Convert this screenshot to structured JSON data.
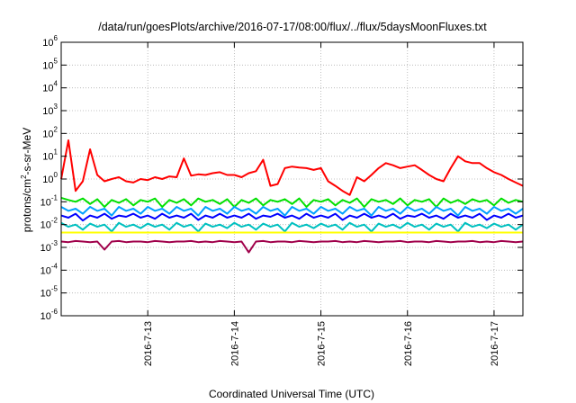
{
  "chart_data": {
    "type": "line",
    "title": "/data/run/goesPlots/archive/2016-07-17/08:00/flux/../flux/5daysMoonFluxes.txt",
    "xlabel": "Coordinated Universal Time (UTC)",
    "ylabel": "protons/cm2-s-sr-MeV",
    "ylabel_parts": {
      "pre": "protons/cm",
      "sup": "2",
      "post": "-s-sr-MeV"
    },
    "yscale": "log",
    "ylim": [
      1e-06,
      1000000.0
    ],
    "y_ticks": [
      {
        "base": "10",
        "exp": "-6",
        "value": 1e-06
      },
      {
        "base": "10",
        "exp": "-5",
        "value": 1e-05
      },
      {
        "base": "10",
        "exp": "-4",
        "value": 0.0001
      },
      {
        "base": "10",
        "exp": "-3",
        "value": 0.001
      },
      {
        "base": "10",
        "exp": "-2",
        "value": 0.01
      },
      {
        "base": "10",
        "exp": "-1",
        "value": 0.1
      },
      {
        "base": "10",
        "exp": "0",
        "value": 1
      },
      {
        "base": "10",
        "exp": "1",
        "value": 10
      },
      {
        "base": "10",
        "exp": "2",
        "value": 100
      },
      {
        "base": "10",
        "exp": "3",
        "value": 1000
      },
      {
        "base": "10",
        "exp": "4",
        "value": 10000
      },
      {
        "base": "10",
        "exp": "5",
        "value": 100000
      },
      {
        "base": "10",
        "exp": "6",
        "value": 1000000
      }
    ],
    "xlim": [
      "2016-07-12T00:00",
      "2016-07-17T08:00"
    ],
    "x_ticks": [
      {
        "label": "2016-7-13",
        "value": "2016-07-13T00:00"
      },
      {
        "label": "2016-7-14",
        "value": "2016-07-14T00:00"
      },
      {
        "label": "2016-7-15",
        "value": "2016-07-15T00:00"
      },
      {
        "label": "2016-7-16",
        "value": "2016-07-16T00:00"
      },
      {
        "label": "2016-7-17",
        "value": "2016-07-17T00:00"
      }
    ],
    "grid": true,
    "x": [
      "2016-07-12T00:00",
      "2016-07-12T02:00",
      "2016-07-12T04:00",
      "2016-07-12T06:00",
      "2016-07-12T08:00",
      "2016-07-12T10:00",
      "2016-07-12T12:00",
      "2016-07-12T14:00",
      "2016-07-12T16:00",
      "2016-07-12T18:00",
      "2016-07-12T20:00",
      "2016-07-12T22:00",
      "2016-07-13T00:00",
      "2016-07-13T02:00",
      "2016-07-13T04:00",
      "2016-07-13T06:00",
      "2016-07-13T08:00",
      "2016-07-13T10:00",
      "2016-07-13T12:00",
      "2016-07-13T14:00",
      "2016-07-13T16:00",
      "2016-07-13T18:00",
      "2016-07-13T20:00",
      "2016-07-13T22:00",
      "2016-07-14T00:00",
      "2016-07-14T02:00",
      "2016-07-14T04:00",
      "2016-07-14T06:00",
      "2016-07-14T08:00",
      "2016-07-14T10:00",
      "2016-07-14T12:00",
      "2016-07-14T14:00",
      "2016-07-14T16:00",
      "2016-07-14T18:00",
      "2016-07-14T20:00",
      "2016-07-14T22:00",
      "2016-07-15T00:00",
      "2016-07-15T02:00",
      "2016-07-15T04:00",
      "2016-07-15T06:00",
      "2016-07-15T08:00",
      "2016-07-15T10:00",
      "2016-07-15T12:00",
      "2016-07-15T14:00",
      "2016-07-15T16:00",
      "2016-07-15T18:00",
      "2016-07-15T20:00",
      "2016-07-15T22:00",
      "2016-07-16T00:00",
      "2016-07-16T02:00",
      "2016-07-16T04:00",
      "2016-07-16T06:00",
      "2016-07-16T08:00",
      "2016-07-16T10:00",
      "2016-07-16T12:00",
      "2016-07-16T14:00",
      "2016-07-16T16:00",
      "2016-07-16T18:00",
      "2016-07-16T20:00",
      "2016-07-16T22:00",
      "2016-07-17T00:00",
      "2016-07-17T02:00",
      "2016-07-17T04:00",
      "2016-07-17T06:00",
      "2016-07-17T08:00"
    ],
    "series": [
      {
        "color": "#ff0000",
        "values": [
          1,
          50,
          0.3,
          0.8,
          20,
          1.5,
          0.8,
          1,
          1.2,
          0.8,
          0.7,
          1,
          0.9,
          1.2,
          1,
          1.3,
          1.2,
          8,
          1.4,
          1.6,
          1.5,
          1.8,
          2,
          1.5,
          1.5,
          1.2,
          1.8,
          2.2,
          7,
          0.5,
          0.6,
          3,
          3.5,
          3.2,
          3,
          2.5,
          3,
          0.8,
          0.5,
          0.3,
          0.2,
          1.2,
          0.8,
          1.5,
          3,
          5,
          4,
          3,
          3.5,
          4,
          2.5,
          1.5,
          1,
          0.8,
          3,
          10,
          6,
          5,
          5,
          3,
          2,
          1.5,
          1,
          0.7,
          0.5
        ]
      },
      {
        "color": "#00e000",
        "values": [
          0.15,
          0.12,
          0.1,
          0.14,
          0.08,
          0.13,
          0.06,
          0.12,
          0.09,
          0.13,
          0.07,
          0.12,
          0.1,
          0.14,
          0.06,
          0.12,
          0.09,
          0.13,
          0.07,
          0.14,
          0.1,
          0.12,
          0.08,
          0.13,
          0.06,
          0.12,
          0.09,
          0.14,
          0.07,
          0.12,
          0.1,
          0.13,
          0.08,
          0.14,
          0.06,
          0.12,
          0.1,
          0.13,
          0.07,
          0.12,
          0.09,
          0.14,
          0.06,
          0.13,
          0.1,
          0.12,
          0.08,
          0.14,
          0.07,
          0.12,
          0.1,
          0.13,
          0.06,
          0.14,
          0.09,
          0.12,
          0.08,
          0.13,
          0.1,
          0.12,
          0.07,
          0.14,
          0.09,
          0.12,
          0.1
        ]
      },
      {
        "color": "#00a0ff",
        "values": [
          0.06,
          0.04,
          0.05,
          0.03,
          0.06,
          0.04,
          0.05,
          0.025,
          0.06,
          0.04,
          0.05,
          0.03,
          0.06,
          0.04,
          0.05,
          0.03,
          0.06,
          0.04,
          0.05,
          0.025,
          0.06,
          0.04,
          0.05,
          0.03,
          0.06,
          0.04,
          0.05,
          0.03,
          0.06,
          0.04,
          0.05,
          0.025,
          0.06,
          0.04,
          0.05,
          0.03,
          0.06,
          0.04,
          0.05,
          0.03,
          0.06,
          0.04,
          0.05,
          0.025,
          0.06,
          0.04,
          0.05,
          0.03,
          0.06,
          0.04,
          0.05,
          0.03,
          0.06,
          0.04,
          0.05,
          0.025,
          0.06,
          0.04,
          0.05,
          0.03,
          0.06,
          0.04,
          0.05,
          0.03,
          0.05
        ]
      },
      {
        "color": "#0000ff",
        "values": [
          0.025,
          0.02,
          0.03,
          0.015,
          0.025,
          0.02,
          0.03,
          0.018,
          0.025,
          0.022,
          0.03,
          0.02,
          0.025,
          0.018,
          0.03,
          0.02,
          0.025,
          0.02,
          0.03,
          0.016,
          0.025,
          0.02,
          0.03,
          0.02,
          0.025,
          0.02,
          0.03,
          0.018,
          0.025,
          0.022,
          0.03,
          0.02,
          0.025,
          0.018,
          0.03,
          0.02,
          0.025,
          0.02,
          0.03,
          0.016,
          0.025,
          0.02,
          0.03,
          0.02,
          0.025,
          0.02,
          0.03,
          0.018,
          0.025,
          0.022,
          0.03,
          0.02,
          0.025,
          0.018,
          0.03,
          0.02,
          0.025,
          0.02,
          0.03,
          0.016,
          0.025,
          0.02,
          0.03,
          0.02,
          0.025
        ]
      },
      {
        "color": "#00c0c0",
        "values": [
          0.012,
          0.008,
          0.01,
          0.006,
          0.011,
          0.008,
          0.01,
          0.005,
          0.012,
          0.008,
          0.01,
          0.007,
          0.011,
          0.008,
          0.01,
          0.006,
          0.012,
          0.008,
          0.01,
          0.005,
          0.011,
          0.008,
          0.01,
          0.007,
          0.012,
          0.008,
          0.01,
          0.006,
          0.011,
          0.008,
          0.01,
          0.005,
          0.012,
          0.008,
          0.01,
          0.007,
          0.011,
          0.008,
          0.01,
          0.006,
          0.012,
          0.008,
          0.01,
          0.005,
          0.011,
          0.008,
          0.01,
          0.007,
          0.012,
          0.008,
          0.01,
          0.006,
          0.011,
          0.008,
          0.01,
          0.005,
          0.012,
          0.008,
          0.01,
          0.007,
          0.011,
          0.008,
          0.01,
          0.006,
          0.01
        ]
      },
      {
        "color": "#ffff00",
        "values": [
          0.0045,
          0.0045,
          0.0045,
          0.0045,
          0.0045,
          0.0045,
          0.0045,
          0.0045,
          0.0045,
          0.0045,
          0.0045,
          0.0045,
          0.0045,
          0.0045,
          0.0045,
          0.0045,
          0.0045,
          0.0045,
          0.0045,
          0.0045,
          0.0045,
          0.0045,
          0.0045,
          0.0045,
          0.0045,
          0.0045,
          0.0045,
          0.0045,
          0.0045,
          0.0045,
          0.0045,
          0.0045,
          0.0045,
          0.0045,
          0.0045,
          0.0045,
          0.0045,
          0.0045,
          0.0045,
          0.0045,
          0.0045,
          0.0045,
          0.0045,
          0.0045,
          0.0045,
          0.0045,
          0.0045,
          0.0045,
          0.0045,
          0.0045,
          0.0045,
          0.0045,
          0.0045,
          0.0045,
          0.0045,
          0.0045,
          0.0045,
          0.0045,
          0.0045,
          0.0045,
          0.0045,
          0.0045,
          0.0045,
          0.0045,
          0.0045
        ]
      },
      {
        "color": "#a0004a",
        "values": [
          0.0018,
          0.0017,
          0.0019,
          0.0018,
          0.0017,
          0.0018,
          0.0008,
          0.0018,
          0.0019,
          0.0017,
          0.0018,
          0.0018,
          0.0017,
          0.0019,
          0.0018,
          0.0017,
          0.0018,
          0.0018,
          0.0019,
          0.0017,
          0.0018,
          0.0017,
          0.0019,
          0.0018,
          0.0017,
          0.0018,
          0.0006,
          0.0018,
          0.0019,
          0.0017,
          0.0018,
          0.0018,
          0.0017,
          0.0019,
          0.0018,
          0.0017,
          0.0018,
          0.0018,
          0.0019,
          0.0017,
          0.0018,
          0.0017,
          0.0019,
          0.0018,
          0.0017,
          0.0018,
          0.0018,
          0.0019,
          0.0017,
          0.0018,
          0.0018,
          0.0017,
          0.0019,
          0.0018,
          0.0017,
          0.0018,
          0.0018,
          0.0019,
          0.0017,
          0.0018,
          0.0017,
          0.0019,
          0.0018,
          0.0017,
          0.0018
        ]
      }
    ]
  }
}
